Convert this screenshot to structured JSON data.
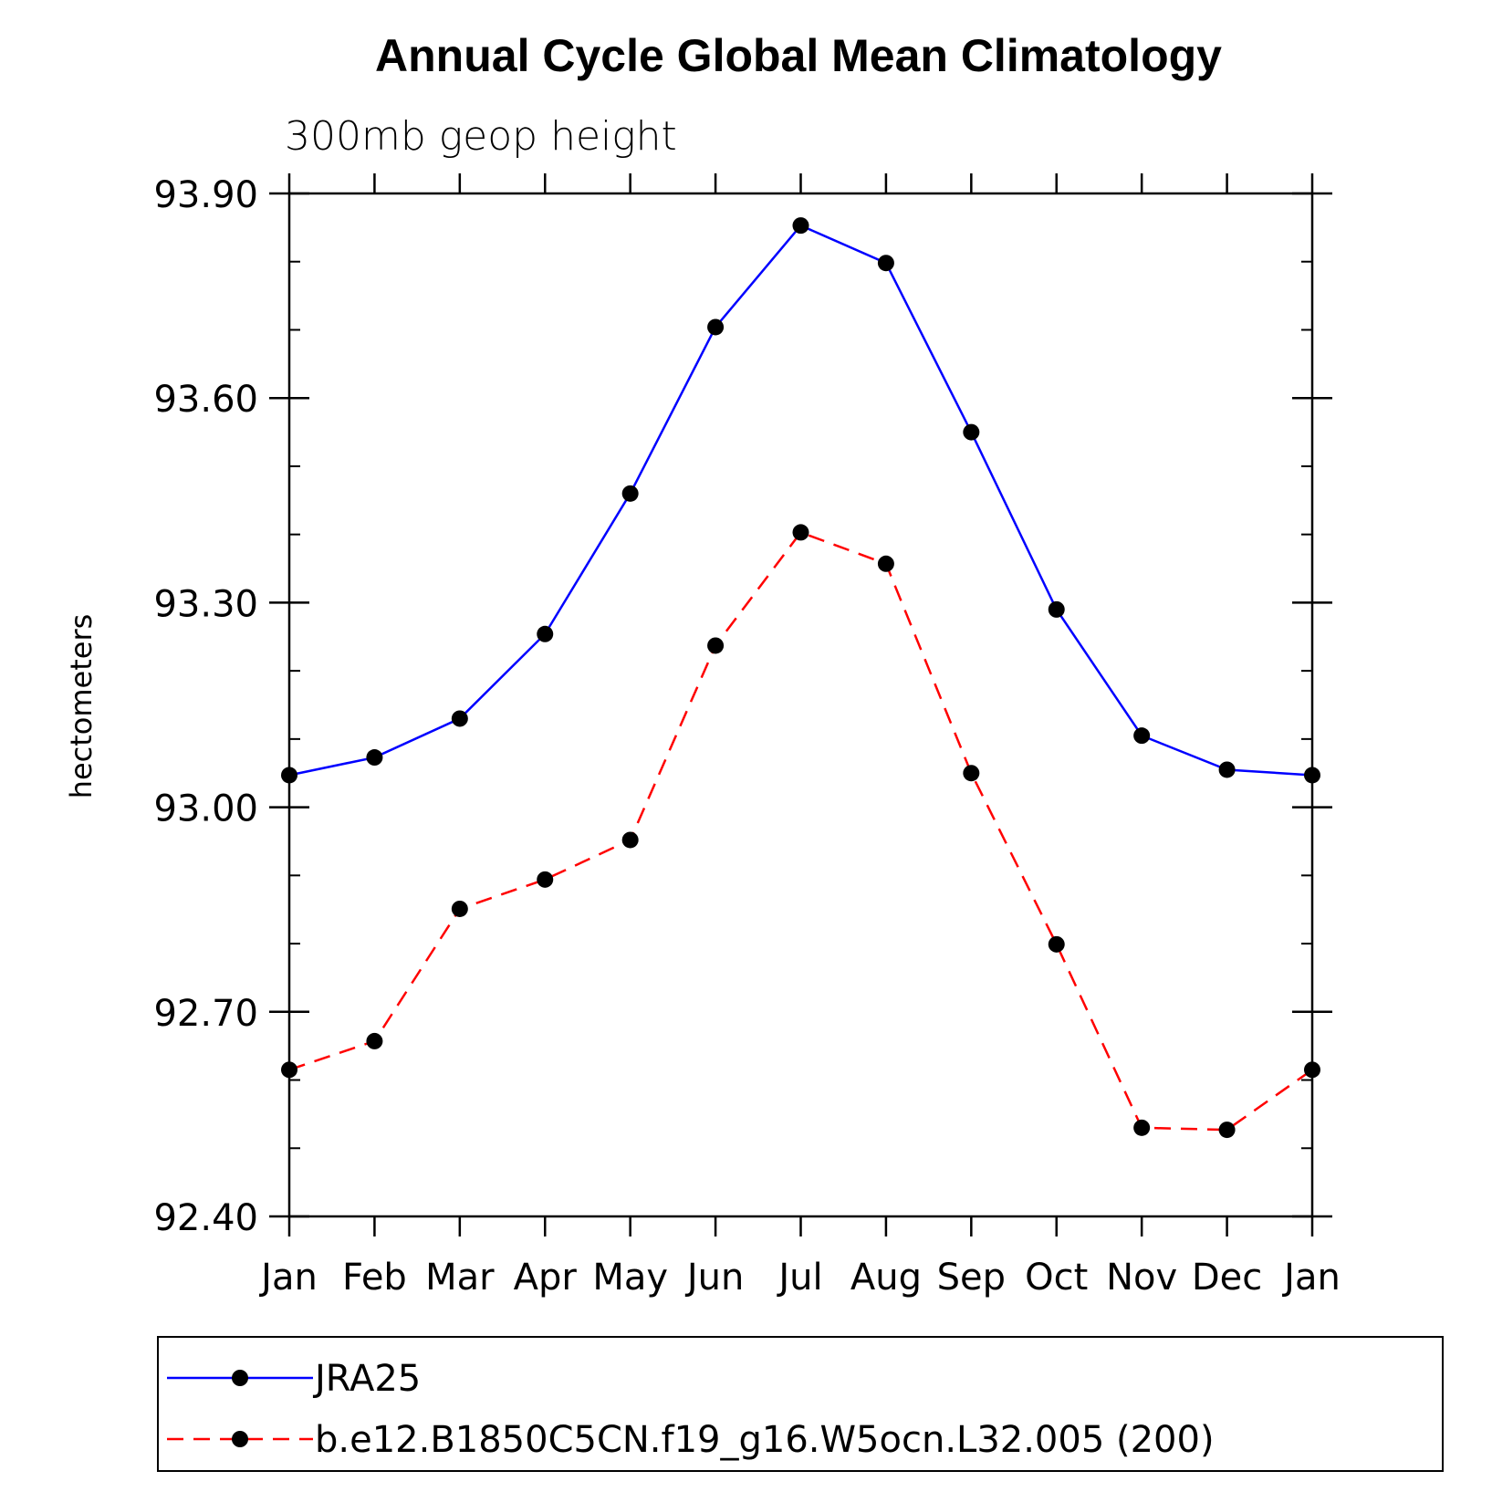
{
  "chart_data": {
    "type": "line",
    "title": "Annual Cycle Global Mean Climatology",
    "subtitle": "300mb geop height",
    "xlabel": "",
    "ylabel": "hectometers",
    "categories": [
      "Jan",
      "Feb",
      "Mar",
      "Apr",
      "May",
      "Jun",
      "Jul",
      "Aug",
      "Sep",
      "Oct",
      "Nov",
      "Dec",
      "Jan"
    ],
    "ylim": [
      92.4,
      93.9
    ],
    "yticks": [
      "92.40",
      "92.70",
      "93.00",
      "93.30",
      "93.60",
      "93.90"
    ],
    "grid": false,
    "legend_placement": "bottom",
    "series": [
      {
        "name": "JRA25",
        "color": "#0000ff",
        "dash": "solid",
        "marker": "filled-circle",
        "values": [
          93.047,
          93.073,
          93.13,
          93.254,
          93.46,
          93.704,
          93.853,
          93.798,
          93.55,
          93.29,
          93.105,
          93.055,
          93.047
        ]
      },
      {
        "name": "b.e12.B1850C5CN.f19_g16.W5ocn.L32.005 (200)",
        "color": "#ff0000",
        "dash": "dashed",
        "marker": "filled-circle",
        "values": [
          92.615,
          92.657,
          92.851,
          92.894,
          92.952,
          93.237,
          93.403,
          93.357,
          93.05,
          92.799,
          92.53,
          92.527,
          92.615
        ]
      }
    ]
  }
}
